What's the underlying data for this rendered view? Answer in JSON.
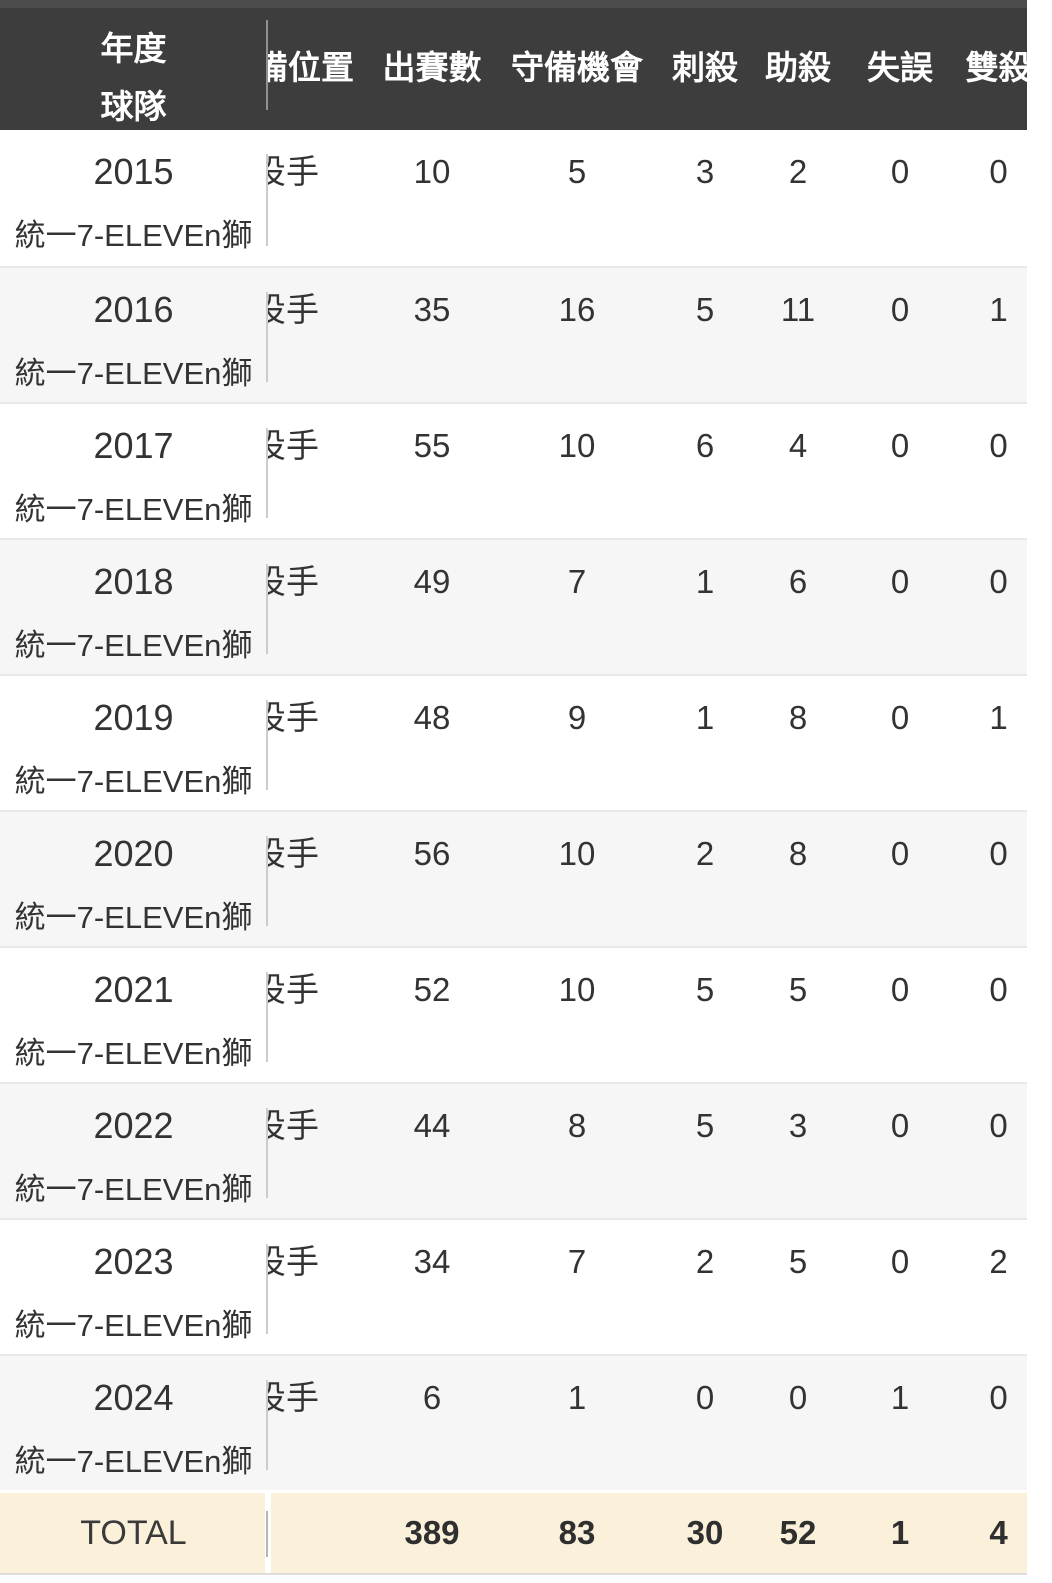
{
  "table": {
    "header": {
      "col_year": "年度",
      "col_team": "球隊",
      "col_position": "守備位置",
      "col_games": "出賽數",
      "col_chances": "守備機會",
      "col_putouts": "刺殺",
      "col_assists": "助殺",
      "col_errors": "失誤",
      "col_double_plays": "雙殺"
    },
    "rows": [
      {
        "year": "2015",
        "team": "統一7-ELEVEn獅",
        "position": "投手",
        "games": "10",
        "chances": "5",
        "putouts": "3",
        "assists": "2",
        "errors": "0",
        "double_plays": "0"
      },
      {
        "year": "2016",
        "team": "統一7-ELEVEn獅",
        "position": "投手",
        "games": "35",
        "chances": "16",
        "putouts": "5",
        "assists": "11",
        "errors": "0",
        "double_plays": "1"
      },
      {
        "year": "2017",
        "team": "統一7-ELEVEn獅",
        "position": "投手",
        "games": "55",
        "chances": "10",
        "putouts": "6",
        "assists": "4",
        "errors": "0",
        "double_plays": "0"
      },
      {
        "year": "2018",
        "team": "統一7-ELEVEn獅",
        "position": "投手",
        "games": "49",
        "chances": "7",
        "putouts": "1",
        "assists": "6",
        "errors": "0",
        "double_plays": "0"
      },
      {
        "year": "2019",
        "team": "統一7-ELEVEn獅",
        "position": "投手",
        "games": "48",
        "chances": "9",
        "putouts": "1",
        "assists": "8",
        "errors": "0",
        "double_plays": "1"
      },
      {
        "year": "2020",
        "team": "統一7-ELEVEn獅",
        "position": "投手",
        "games": "56",
        "chances": "10",
        "putouts": "2",
        "assists": "8",
        "errors": "0",
        "double_plays": "0"
      },
      {
        "year": "2021",
        "team": "統一7-ELEVEn獅",
        "position": "投手",
        "games": "52",
        "chances": "10",
        "putouts": "5",
        "assists": "5",
        "errors": "0",
        "double_plays": "0"
      },
      {
        "year": "2022",
        "team": "統一7-ELEVEn獅",
        "position": "投手",
        "games": "44",
        "chances": "8",
        "putouts": "5",
        "assists": "3",
        "errors": "0",
        "double_plays": "0"
      },
      {
        "year": "2023",
        "team": "統一7-ELEVEn獅",
        "position": "投手",
        "games": "34",
        "chances": "7",
        "putouts": "2",
        "assists": "5",
        "errors": "0",
        "double_plays": "2"
      },
      {
        "year": "2024",
        "team": "統一7-ELEVEn獅",
        "position": "投手",
        "games": "6",
        "chances": "1",
        "putouts": "0",
        "assists": "0",
        "errors": "1",
        "double_plays": "0"
      }
    ],
    "total": {
      "label": "TOTAL",
      "games": "389",
      "chances": "83",
      "putouts": "30",
      "assists": "52",
      "errors": "1",
      "double_plays": "4"
    },
    "colors": {
      "header_bg": "#3d3d3d",
      "header_top_strip": "#4b4b4b",
      "header_text": "#ffffff",
      "row_bg": "#ffffff",
      "row_alt_bg": "#f6f6f6",
      "total_bg": "#fbf1db",
      "body_text": "#333333",
      "divider": "#cccccc"
    }
  }
}
